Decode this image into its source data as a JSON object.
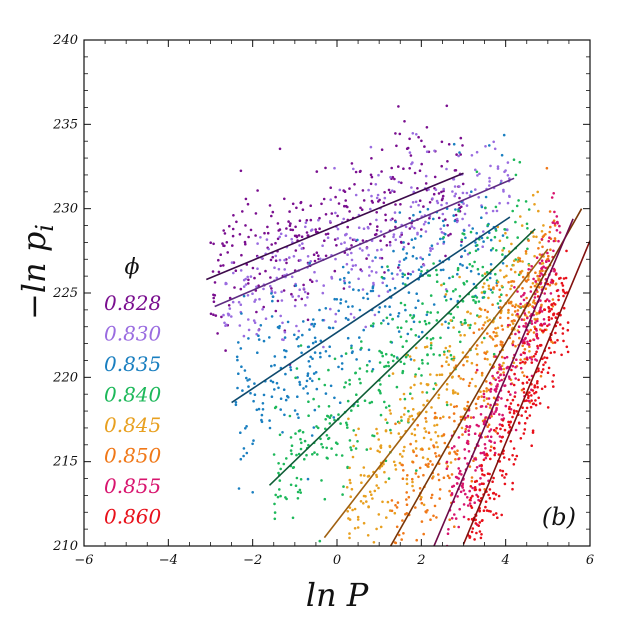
{
  "chart_data": {
    "type": "scatter",
    "title": "",
    "xlabel": "ln P",
    "ylabel_main": "−ln p",
    "ylabel_sub": "i",
    "xlim": [
      -6,
      6
    ],
    "ylim": [
      210,
      240
    ],
    "xticks": [
      -6,
      -4,
      -2,
      0,
      2,
      4,
      6
    ],
    "yticks": [
      210,
      215,
      220,
      225,
      230,
      235,
      240
    ],
    "xtick_labels": [
      "−6",
      "−4",
      "−2",
      "0",
      "2",
      "4",
      "6"
    ],
    "ytick_labels": [
      "210",
      "215",
      "220",
      "225",
      "230",
      "235",
      "240"
    ],
    "grid": false,
    "legend_title": "ϕ",
    "legend_position": "left",
    "panel_label": "(b)",
    "series": [
      {
        "name": "0.828",
        "color": "#7a0f8f",
        "fit_color": "#3d0a4a",
        "fit": {
          "x0": -3.1,
          "y0": 225.8,
          "x1": 3.0,
          "y1": 232.1
        },
        "cloud": {
          "x_min": -3.0,
          "x_max": 3.0,
          "spread": 2.2,
          "n": 320
        }
      },
      {
        "name": "0.830",
        "color": "#9a6ce0",
        "fit_color": "#5e2c82",
        "fit": {
          "x0": -2.9,
          "y0": 224.2,
          "x1": 4.2,
          "y1": 231.8
        },
        "cloud": {
          "x_min": -2.8,
          "x_max": 4.1,
          "spread": 2.0,
          "n": 330
        }
      },
      {
        "name": "0.835",
        "color": "#1a7fc0",
        "fit_color": "#0e4a6e",
        "fit": {
          "x0": -2.5,
          "y0": 218.5,
          "x1": 4.1,
          "y1": 229.5
        },
        "cloud": {
          "x_min": -2.4,
          "x_max": 4.0,
          "spread": 2.3,
          "n": 340
        }
      },
      {
        "name": "0.840",
        "color": "#1db85a",
        "fit_color": "#0f5e36",
        "fit": {
          "x0": -1.6,
          "y0": 213.6,
          "x1": 4.7,
          "y1": 228.8
        },
        "cloud": {
          "x_min": -1.5,
          "x_max": 4.6,
          "spread": 2.3,
          "n": 360
        }
      },
      {
        "name": "0.845",
        "color": "#e8a020",
        "fit_color": "#a06010",
        "fit": {
          "x0": -0.3,
          "y0": 210.5,
          "x1": 5.0,
          "y1": 227.6
        },
        "cloud": {
          "x_min": 0.2,
          "x_max": 4.9,
          "spread": 2.3,
          "n": 360
        }
      },
      {
        "name": "0.850",
        "color": "#f07818",
        "fit_color": "#7a3608",
        "fit": {
          "x0": 1.0,
          "y0": 208.8,
          "x1": 5.8,
          "y1": 230.0
        },
        "cloud": {
          "x_min": 1.3,
          "x_max": 5.2,
          "spread": 2.2,
          "n": 360
        }
      },
      {
        "name": "0.855",
        "color": "#d8146e",
        "fit_color": "#6e0a48",
        "fit": {
          "x0": 2.3,
          "y0": 210.0,
          "x1": 5.6,
          "y1": 229.4
        },
        "cloud": {
          "x_min": 2.6,
          "x_max": 5.3,
          "spread": 1.7,
          "n": 320
        }
      },
      {
        "name": "0.860",
        "color": "#e8101a",
        "fit_color": "#82100e",
        "fit": {
          "x0": 3.0,
          "y0": 210.1,
          "x1": 6.0,
          "y1": 228.1
        },
        "cloud": {
          "x_min": 3.1,
          "x_max": 5.5,
          "spread": 1.6,
          "n": 300
        }
      }
    ]
  }
}
